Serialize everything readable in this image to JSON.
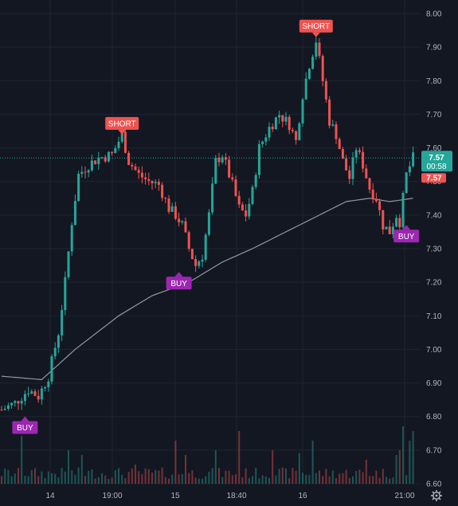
{
  "chart_data": {
    "type": "candlestick",
    "title": "",
    "xlabel": "",
    "ylabel": "",
    "ylim": [
      6.6,
      8.0
    ],
    "y_ticks": [
      "8.00",
      "7.90",
      "7.80",
      "7.70",
      "7.60",
      "7.50",
      "7.40",
      "7.30",
      "7.20",
      "7.10",
      "7.00",
      "6.90",
      "6.80",
      "6.70",
      "6.60"
    ],
    "x_ticks": [
      "14",
      "19:00",
      "15",
      "18:40",
      "16",
      "21:00"
    ],
    "grid": true,
    "colors": {
      "up": "#26a69a",
      "down": "#ef5350",
      "signal_buy": "#9c27b0",
      "signal_short": "#ef5350",
      "ma": "#9598a1",
      "background": "#131722"
    },
    "price_path": [
      [
        0,
        6.82
      ],
      [
        4,
        6.84
      ],
      [
        8,
        6.88
      ],
      [
        11,
        6.86
      ],
      [
        14,
        6.92
      ],
      [
        17,
        7.05
      ],
      [
        19,
        7.2
      ],
      [
        21,
        7.38
      ],
      [
        23,
        7.52
      ],
      [
        26,
        7.55
      ],
      [
        29,
        7.57
      ],
      [
        33,
        7.58
      ],
      [
        36,
        7.64
      ],
      [
        38,
        7.56
      ],
      [
        41,
        7.52
      ],
      [
        44,
        7.5
      ],
      [
        47,
        7.49
      ],
      [
        50,
        7.42
      ],
      [
        52,
        7.4
      ],
      [
        54,
        7.37
      ],
      [
        56,
        7.3
      ],
      [
        58,
        7.25
      ],
      [
        60,
        7.28
      ],
      [
        62,
        7.4
      ],
      [
        64,
        7.56
      ],
      [
        66,
        7.58
      ],
      [
        69,
        7.49
      ],
      [
        71,
        7.42
      ],
      [
        73,
        7.4
      ],
      [
        75,
        7.47
      ],
      [
        77,
        7.6
      ],
      [
        80,
        7.66
      ],
      [
        83,
        7.7
      ],
      [
        86,
        7.67
      ],
      [
        88,
        7.62
      ],
      [
        90,
        7.76
      ],
      [
        92,
        7.85
      ],
      [
        94,
        7.92
      ],
      [
        96,
        7.8
      ],
      [
        98,
        7.68
      ],
      [
        100,
        7.64
      ],
      [
        102,
        7.56
      ],
      [
        104,
        7.51
      ],
      [
        106,
        7.6
      ],
      [
        108,
        7.55
      ],
      [
        110,
        7.48
      ],
      [
        112,
        7.45
      ],
      [
        114,
        7.37
      ],
      [
        116,
        7.35
      ],
      [
        118,
        7.4
      ],
      [
        119,
        7.38
      ],
      [
        121,
        7.52
      ],
      [
        123,
        7.57
      ]
    ],
    "moving_average": [
      [
        0,
        6.92
      ],
      [
        12,
        6.91
      ],
      [
        22,
        7.0
      ],
      [
        35,
        7.1
      ],
      [
        45,
        7.16
      ],
      [
        56,
        7.2
      ],
      [
        66,
        7.26
      ],
      [
        75,
        7.3
      ],
      [
        85,
        7.35
      ],
      [
        95,
        7.4
      ],
      [
        103,
        7.44
      ],
      [
        110,
        7.45
      ],
      [
        116,
        7.44
      ],
      [
        123,
        7.45
      ]
    ],
    "signals": [
      {
        "label": "BUY",
        "type": "buy",
        "x": 7,
        "y": 6.81
      },
      {
        "label": "SHORT",
        "type": "short",
        "x": 36,
        "y": 7.63
      },
      {
        "label": "BUY",
        "type": "buy",
        "x": 53,
        "y": 7.24
      },
      {
        "label": "SHORT",
        "type": "short",
        "x": 94,
        "y": 7.92
      },
      {
        "label": "BUY",
        "type": "buy",
        "x": 121,
        "y": 7.38
      }
    ],
    "last_price": {
      "value": "7.57",
      "countdown": "00:58",
      "red_value": "7.57"
    }
  }
}
